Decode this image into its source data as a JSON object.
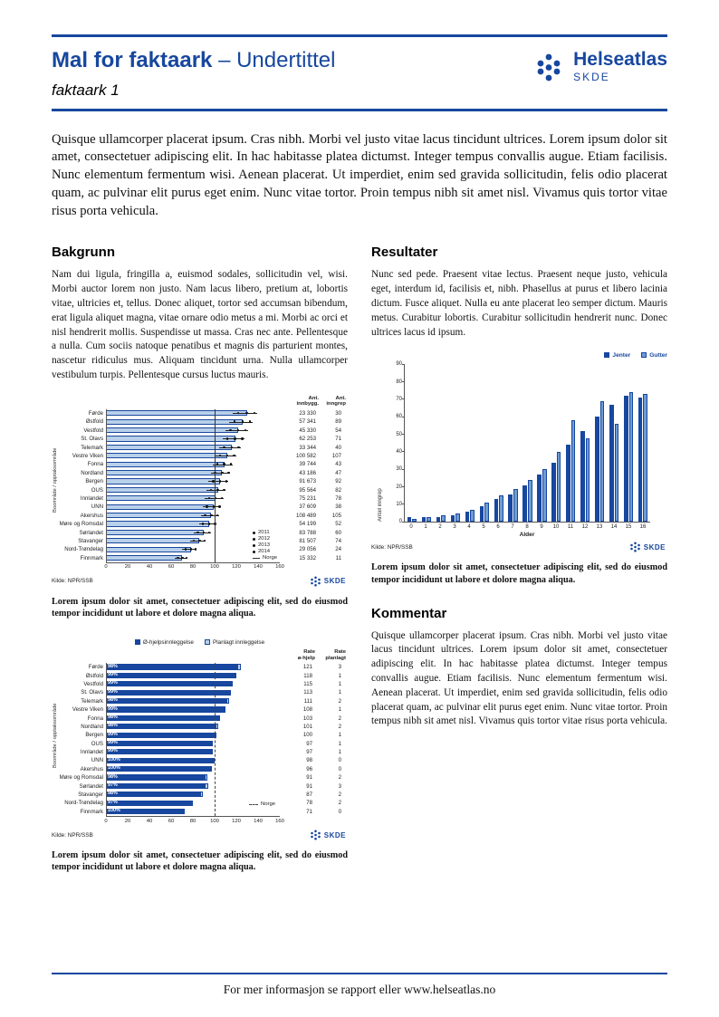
{
  "colors": {
    "brand": "#17479e",
    "bar_light": "#b9d0ea",
    "bar_dark": "#17479e",
    "bar_mid": "#6f9cd3"
  },
  "header": {
    "title": "Mal for faktaark",
    "title_suffix": " – Undertittel",
    "doc_label": "faktaark 1",
    "logo_name": "Helseatlas",
    "logo_sub": "SKDE"
  },
  "intro": "Quisque ullamcorper placerat ipsum. Cras nibh. Morbi vel justo vitae lacus tincidunt ultrices. Lorem ipsum dolor sit amet, consectetuer adipiscing elit. In hac habitasse platea dictumst. Integer tempus convallis augue. Etiam facilisis. Nunc elementum fermentum wisi. Aenean placerat. Ut imperdiet, enim sed gravida sollicitudin, felis odio placerat quam, ac pulvinar elit purus eget enim. Nunc vitae tortor. Proin tempus nibh sit amet nisl. Vivamus quis tortor vitae risus porta vehicula.",
  "sections": {
    "bakgrunn": {
      "heading": "Bakgrunn",
      "body": "Nam dui ligula, fringilla a, euismod sodales, sollicitudin vel, wisi. Morbi auctor lorem non justo. Nam lacus libero, pretium at, lobortis vitae, ultricies et, tellus. Donec aliquet, tortor sed accumsan bibendum, erat ligula aliquet magna, vitae ornare odio metus a mi. Morbi ac orci et nisl hendrerit mollis. Suspendisse ut massa. Cras nec ante. Pellentesque a nulla. Cum sociis natoque penatibus et magnis dis parturient montes, nascetur ridiculus mus. Aliquam tincidunt urna. Nulla ullamcorper vestibulum turpis. Pellentesque cursus luctus mauris."
    },
    "resultater": {
      "heading": "Resultater",
      "body": "Nunc sed pede. Praesent vitae lectus. Praesent neque justo, vehicula eget, interdum id, facilisis et, nibh. Phasellus at purus et libero lacinia dictum. Fusce aliquet. Nulla eu ante placerat leo semper dictum. Mauris metus. Curabitur lobortis. Curabitur sollicitudin hendrerit nunc. Donec ultrices lacus id ipsum."
    },
    "kommentar": {
      "heading": "Kommentar",
      "body": "Quisque ullamcorper placerat ipsum. Cras nibh. Morbi vel justo vitae lacus tincidunt ultrices. Lorem ipsum dolor sit amet, consectetuer adipiscing elit. In hac habitasse platea dictumst. Integer tempus convallis augue. Etiam facilisis. Nunc elementum fermentum wisi. Aenean placerat. Ut imperdiet, enim sed gravida sollicitudin, felis odio placerat quam, ac pulvinar elit purus eget enim. Nunc vitae tortor. Proin tempus nibh sit amet nisl. Vivamus quis tortor vitae risus porta vehicula."
    }
  },
  "captions": {
    "chart1": "Lorem ipsum dolor sit amet, consectetuer adipiscing elit, sed do eiusmod tempor incididunt ut labore et dolore magna aliqua.",
    "chart2": "Lorem ipsum dolor sit amet, consectetuer adipiscing elit, sed do eiusmod tempor incididunt ut labore et dolore magna aliqua.",
    "chart3": "Lorem ipsum dolor sit amet, consectetuer adipiscing elit, sed do eiusmod tempor incididunt ut labore et dolore magna aliqua."
  },
  "footer_text": "For mer informasjon se rapport eller www.helseatlas.no",
  "chart_data": [
    {
      "type": "bar",
      "orientation": "horizontal",
      "name": "rates-by-area",
      "ylabel": "Boområde / opptaksområde",
      "xlim": [
        0,
        160
      ],
      "xticks": [
        0,
        20,
        40,
        60,
        80,
        100,
        120,
        140,
        160
      ],
      "categories": [
        "Førde",
        "Østfold",
        "Vestfold",
        "St. Olavs",
        "Telemark",
        "Vestre Viken",
        "Fonna",
        "Nordland",
        "Bergen",
        "OUS",
        "Innlandet",
        "UNN",
        "Akershus",
        "Møre og Romsdal",
        "Sørlandet",
        "Stavanger",
        "Nord-Trøndelag",
        "Finnmark"
      ],
      "values": [
        130,
        126,
        122,
        119,
        116,
        112,
        109,
        107,
        105,
        103,
        101,
        99,
        97,
        95,
        90,
        86,
        78,
        70
      ],
      "columns": {
        "headers": [
          "Ant.\ninnbygg.",
          "Ant.\ninngrep"
        ],
        "innbygg": [
          "23 330",
          "57 341",
          "45 330",
          "62 253",
          "33 344",
          "100 582",
          "39 744",
          "43 186",
          "91 673",
          "95 564",
          "75 231",
          "37 609",
          "108 489",
          "54 199",
          "83 788",
          "81 507",
          "29 056",
          "15 332"
        ],
        "inngrep": [
          "30",
          "89",
          "54",
          "71",
          "40",
          "107",
          "43",
          "47",
          "92",
          "82",
          "78",
          "38",
          "105",
          "52",
          "60",
          "74",
          "24",
          "11"
        ]
      },
      "legend": [
        "2011",
        "2012",
        "2013",
        "2014",
        "Norge"
      ],
      "reference_line": 100,
      "source": "Kilde: NPR/SSB"
    },
    {
      "type": "bar",
      "orientation": "horizontal",
      "stacked": true,
      "name": "emergency-vs-planned",
      "ylabel": "Boområde / opptaksområde",
      "xlim": [
        0,
        160
      ],
      "xticks": [
        0,
        20,
        40,
        60,
        80,
        100,
        120,
        140,
        160
      ],
      "categories": [
        "Førde",
        "Østfold",
        "Vestfold",
        "St. Olavs",
        "Telemark",
        "Vestre Viken",
        "Fonna",
        "Nordland",
        "Bergen",
        "OUS",
        "Innlandet",
        "UNN",
        "Akershus",
        "Møre og Romsdal",
        "Sørlandet",
        "Stavanger",
        "Nord-Trøndelag",
        "Finnmark"
      ],
      "series": [
        {
          "name": "Ø-hjelpsinnleggelse",
          "values": [
            121,
            118,
            115,
            113,
            111,
            108,
            103,
            101,
            100,
            97,
            97,
            98,
            96,
            91,
            91,
            87,
            78,
            71
          ]
        },
        {
          "name": "Planlagt innleggelse",
          "values": [
            3,
            1,
            1,
            1,
            2,
            1,
            2,
            2,
            1,
            1,
            1,
            0,
            0,
            2,
            3,
            2,
            2,
            0
          ]
        }
      ],
      "bar_labels": [
        "98%",
        "99%",
        "99%",
        "99%",
        "98%",
        "99%",
        "98%",
        "98%",
        "99%",
        "99%",
        "99%",
        "100%",
        "100%",
        "98%",
        "97%",
        "98%",
        "97%",
        "100%"
      ],
      "columns": {
        "headers": [
          "Rate\nø-hjelp",
          "Rate\nplanlagt"
        ],
        "rate1": [
          "121",
          "118",
          "115",
          "113",
          "111",
          "108",
          "103",
          "101",
          "100",
          "97",
          "97",
          "98",
          "96",
          "91",
          "91",
          "87",
          "78",
          "71"
        ],
        "rate2": [
          "3",
          "1",
          "1",
          "1",
          "2",
          "1",
          "2",
          "2",
          "1",
          "1",
          "1",
          "0",
          "0",
          "2",
          "3",
          "2",
          "2",
          "0"
        ]
      },
      "legend_norge": "Norge",
      "reference_line": 100,
      "source": "Kilde: NPR/SSB"
    },
    {
      "type": "bar",
      "orientation": "vertical",
      "grouped": true,
      "name": "operations-by-age",
      "xlabel": "Alder",
      "ylabel": "Antall inngrep",
      "ylim": [
        0,
        90
      ],
      "yticks": [
        0,
        10,
        20,
        30,
        40,
        50,
        60,
        70,
        80,
        90
      ],
      "categories": [
        "0",
        "1",
        "2",
        "3",
        "4",
        "5",
        "6",
        "7",
        "8",
        "9",
        "10",
        "11",
        "12",
        "13",
        "14",
        "15",
        "16"
      ],
      "series": [
        {
          "name": "Jenter",
          "values": [
            3,
            3,
            3,
            4,
            6,
            9,
            13,
            16,
            21,
            27,
            34,
            44,
            52,
            60,
            67,
            72,
            71
          ]
        },
        {
          "name": "Gutter",
          "values": [
            2,
            3,
            4,
            5,
            7,
            11,
            15,
            19,
            24,
            30,
            40,
            58,
            48,
            69,
            56,
            74,
            73
          ]
        }
      ],
      "source": "Kilde: NPR/SSB"
    }
  ]
}
